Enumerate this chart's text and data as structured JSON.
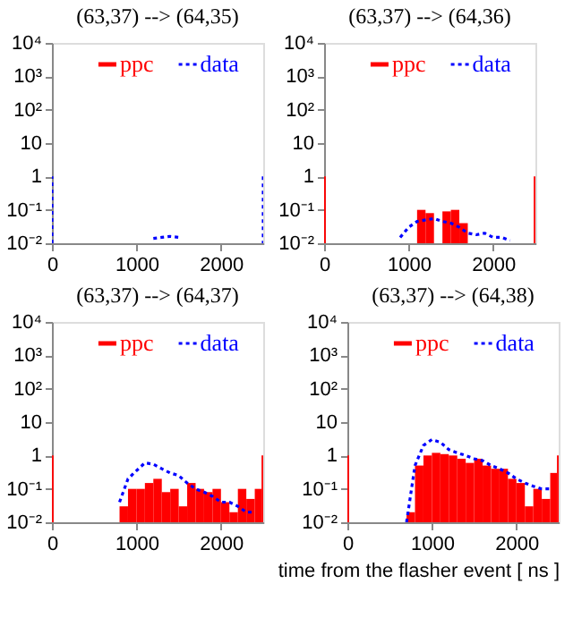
{
  "chart_data": [
    {
      "type": "histogram",
      "title": "(63,37) --> (64,35)",
      "xlim": [
        0,
        2500
      ],
      "xticks": [
        0,
        1000,
        2000
      ],
      "ylim": [
        0.01,
        10000
      ],
      "yticks": [
        {
          "value": 0.01,
          "label": "10⁻²"
        },
        {
          "value": 0.1,
          "label": "10⁻¹"
        },
        1,
        10,
        {
          "value": 100,
          "label": "10²"
        },
        {
          "value": 1000,
          "label": "10³"
        },
        {
          "value": 10000,
          "label": "10⁴"
        }
      ],
      "log": true,
      "grid": false,
      "legend": "top",
      "series": [
        {
          "name": "ppc",
          "color": "#ff0000"
        },
        {
          "name": "data",
          "color": "#0000ff",
          "type": "line",
          "line_style": "dotted",
          "x": [
            0,
            0,
            50,
            1150,
            1200,
            1300,
            1400,
            1500,
            1550,
            2450,
            2500,
            2500
          ],
          "values": [
            0.01,
            1,
            null,
            null,
            0.014,
            0.015,
            0.016,
            0.015,
            null,
            null,
            1,
            0.01
          ]
        }
      ]
    },
    {
      "type": "histogram",
      "title": "(63,37) --> (64,36)",
      "bins": [
        0,
        20,
        1100,
        1200,
        1300,
        1400,
        1500,
        1600,
        1700,
        2480,
        2500
      ],
      "xlim": [
        0,
        2500
      ],
      "xticks": [
        0,
        1000,
        2000
      ],
      "ylim": [
        0.01,
        10000
      ],
      "yticks": [
        {
          "value": 0.01,
          "label": "10⁻²"
        },
        {
          "value": 0.1,
          "label": "10⁻¹"
        },
        1,
        10,
        {
          "value": 100,
          "label": "10²"
        },
        {
          "value": 1000,
          "label": "10³"
        },
        {
          "value": 10000,
          "label": "10⁴"
        }
      ],
      "log": true,
      "grid": false,
      "legend": "top",
      "series": [
        {
          "name": "ppc",
          "color": "#ff0000",
          "values": [
            1,
            null,
            0.1,
            0.08,
            null,
            0.09,
            0.1,
            0.04,
            null,
            1
          ]
        },
        {
          "name": "data",
          "color": "#0000ff",
          "type": "line",
          "line_style": "dotted",
          "x": [
            900,
            1000,
            1100,
            1200,
            1300,
            1400,
            1500,
            1600,
            1700,
            1800,
            1900,
            2000,
            2100,
            2200
          ],
          "values": [
            0.015,
            0.03,
            0.045,
            0.05,
            0.055,
            0.045,
            0.04,
            0.03,
            0.02,
            0.018,
            0.02,
            0.015,
            0.015,
            0.012
          ]
        }
      ]
    },
    {
      "type": "histogram",
      "title": "(63,37) --> (64,37)",
      "bins": [
        0,
        20,
        800,
        900,
        1000,
        1100,
        1200,
        1300,
        1400,
        1500,
        1600,
        1700,
        1800,
        1900,
        2000,
        2100,
        2200,
        2300,
        2400,
        2480,
        2500
      ],
      "xlim": [
        0,
        2500
      ],
      "xticks": [
        0,
        1000,
        2000
      ],
      "ylim": [
        0.01,
        10000
      ],
      "yticks": [
        {
          "value": 0.01,
          "label": "10⁻²"
        },
        {
          "value": 0.1,
          "label": "10⁻¹"
        },
        1,
        10,
        {
          "value": 100,
          "label": "10²"
        },
        {
          "value": 1000,
          "label": "10³"
        },
        {
          "value": 10000,
          "label": "10⁴"
        }
      ],
      "log": true,
      "grid": false,
      "legend": "top",
      "series": [
        {
          "name": "ppc",
          "color": "#ff0000",
          "values": [
            1,
            null,
            0.03,
            0.1,
            0.1,
            0.15,
            0.2,
            0.08,
            0.1,
            0.03,
            0.15,
            0.1,
            0.08,
            0.1,
            0.04,
            0.02,
            0.1,
            0.05,
            0.1,
            1
          ]
        },
        {
          "name": "data",
          "color": "#0000ff",
          "type": "line",
          "line_style": "dotted",
          "x": [
            800,
            900,
            1000,
            1100,
            1200,
            1300,
            1400,
            1500,
            1600,
            1700,
            1800,
            1900,
            2000,
            2100,
            2200,
            2300,
            2400
          ],
          "values": [
            0.04,
            0.2,
            0.35,
            0.6,
            0.55,
            0.4,
            0.3,
            0.25,
            0.15,
            0.1,
            0.08,
            0.06,
            0.04,
            0.04,
            0.03,
            0.02,
            0.02
          ]
        }
      ]
    },
    {
      "type": "histogram",
      "title": "(63,37) --> (64,38)",
      "xlabel": "time from the flasher event [ ns ]",
      "bins": [
        0,
        20,
        700,
        800,
        900,
        1000,
        1100,
        1200,
        1300,
        1400,
        1500,
        1600,
        1700,
        1800,
        1900,
        2000,
        2100,
        2200,
        2300,
        2400,
        2480,
        2500
      ],
      "xlim": [
        0,
        2500
      ],
      "xticks": [
        0,
        1000,
        2000
      ],
      "ylim": [
        0.01,
        10000
      ],
      "yticks": [
        {
          "value": 0.01,
          "label": "10⁻²"
        },
        {
          "value": 0.1,
          "label": "10⁻¹"
        },
        1,
        10,
        {
          "value": 100,
          "label": "10²"
        },
        {
          "value": 1000,
          "label": "10³"
        },
        {
          "value": 10000,
          "label": "10⁴"
        }
      ],
      "log": true,
      "grid": false,
      "legend": "top",
      "series": [
        {
          "name": "ppc",
          "color": "#ff0000",
          "values": [
            1,
            null,
            0.02,
            0.5,
            1,
            1.2,
            1.1,
            1,
            0.8,
            0.6,
            0.8,
            0.5,
            0.4,
            0.4,
            0.2,
            0.15,
            0.03,
            0.1,
            0.05,
            0.3,
            1
          ]
        },
        {
          "name": "data",
          "color": "#0000ff",
          "type": "line",
          "line_style": "dotted",
          "x": [
            700,
            800,
            900,
            1000,
            1100,
            1200,
            1300,
            1400,
            1500,
            1600,
            1700,
            1800,
            1900,
            2000,
            2100,
            2200,
            2300,
            2400
          ],
          "values": [
            0.01,
            0.5,
            2,
            3,
            2.5,
            1.5,
            1.2,
            1,
            0.8,
            0.7,
            0.5,
            0.4,
            0.3,
            0.2,
            0.15,
            0.12,
            0.1,
            0.1
          ]
        }
      ]
    }
  ]
}
